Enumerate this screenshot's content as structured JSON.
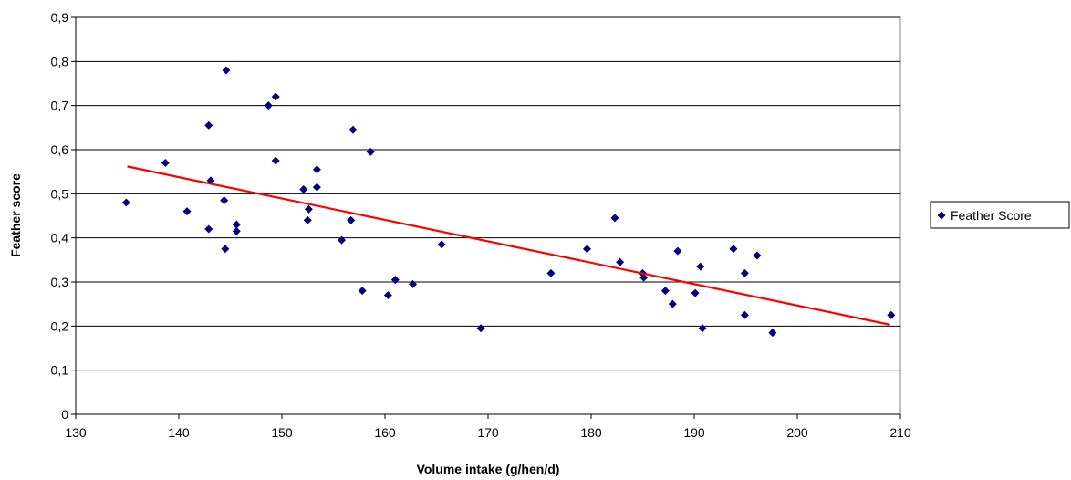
{
  "chart_data": {
    "type": "scatter",
    "xlabel": "Volume intake (g/hen/d)",
    "ylabel": "Feather score",
    "xlim": [
      130,
      210
    ],
    "ylim": [
      0,
      0.9
    ],
    "x_ticks": [
      "130",
      "140",
      "150",
      "160",
      "170",
      "180",
      "190",
      "200",
      "210"
    ],
    "y_ticks": [
      "0",
      "0,1",
      "0,2",
      "0,3",
      "0,4",
      "0,5",
      "0,6",
      "0,7",
      "0,8",
      "0,9"
    ],
    "grid": "horizontal",
    "legend_position": "right",
    "series": [
      {
        "name": "Feather Score",
        "color": "#000080",
        "marker": "diamond",
        "points": [
          [
            134.9,
            0.48
          ],
          [
            138.7,
            0.57
          ],
          [
            140.8,
            0.46
          ],
          [
            142.9,
            0.42
          ],
          [
            142.9,
            0.655
          ],
          [
            143.1,
            0.53
          ],
          [
            144.4,
            0.485
          ],
          [
            144.6,
            0.78
          ],
          [
            144.5,
            0.375
          ],
          [
            145.6,
            0.415
          ],
          [
            145.6,
            0.43
          ],
          [
            148.7,
            0.7
          ],
          [
            149.4,
            0.72
          ],
          [
            149.4,
            0.575
          ],
          [
            152.1,
            0.51
          ],
          [
            152.5,
            0.44
          ],
          [
            152.6,
            0.465
          ],
          [
            153.4,
            0.515
          ],
          [
            153.4,
            0.555
          ],
          [
            155.8,
            0.395
          ],
          [
            156.7,
            0.44
          ],
          [
            156.9,
            0.645
          ],
          [
            157.8,
            0.28
          ],
          [
            158.6,
            0.595
          ],
          [
            160.3,
            0.27
          ],
          [
            161.0,
            0.305
          ],
          [
            162.7,
            0.295
          ],
          [
            165.5,
            0.385
          ],
          [
            169.3,
            0.195
          ],
          [
            176.1,
            0.32
          ],
          [
            179.6,
            0.375
          ],
          [
            182.3,
            0.445
          ],
          [
            182.8,
            0.345
          ],
          [
            185.0,
            0.32
          ],
          [
            185.1,
            0.31
          ],
          [
            187.2,
            0.28
          ],
          [
            187.9,
            0.25
          ],
          [
            188.4,
            0.37
          ],
          [
            190.1,
            0.275
          ],
          [
            190.6,
            0.335
          ],
          [
            190.8,
            0.195
          ],
          [
            193.8,
            0.375
          ],
          [
            194.9,
            0.32
          ],
          [
            194.9,
            0.225
          ],
          [
            196.1,
            0.36
          ],
          [
            197.6,
            0.185
          ],
          [
            209.1,
            0.225
          ]
        ]
      }
    ],
    "trendline": {
      "type": "linear",
      "color": "#ff0000",
      "from": [
        135,
        0.562
      ],
      "to": [
        209,
        0.203
      ]
    }
  }
}
